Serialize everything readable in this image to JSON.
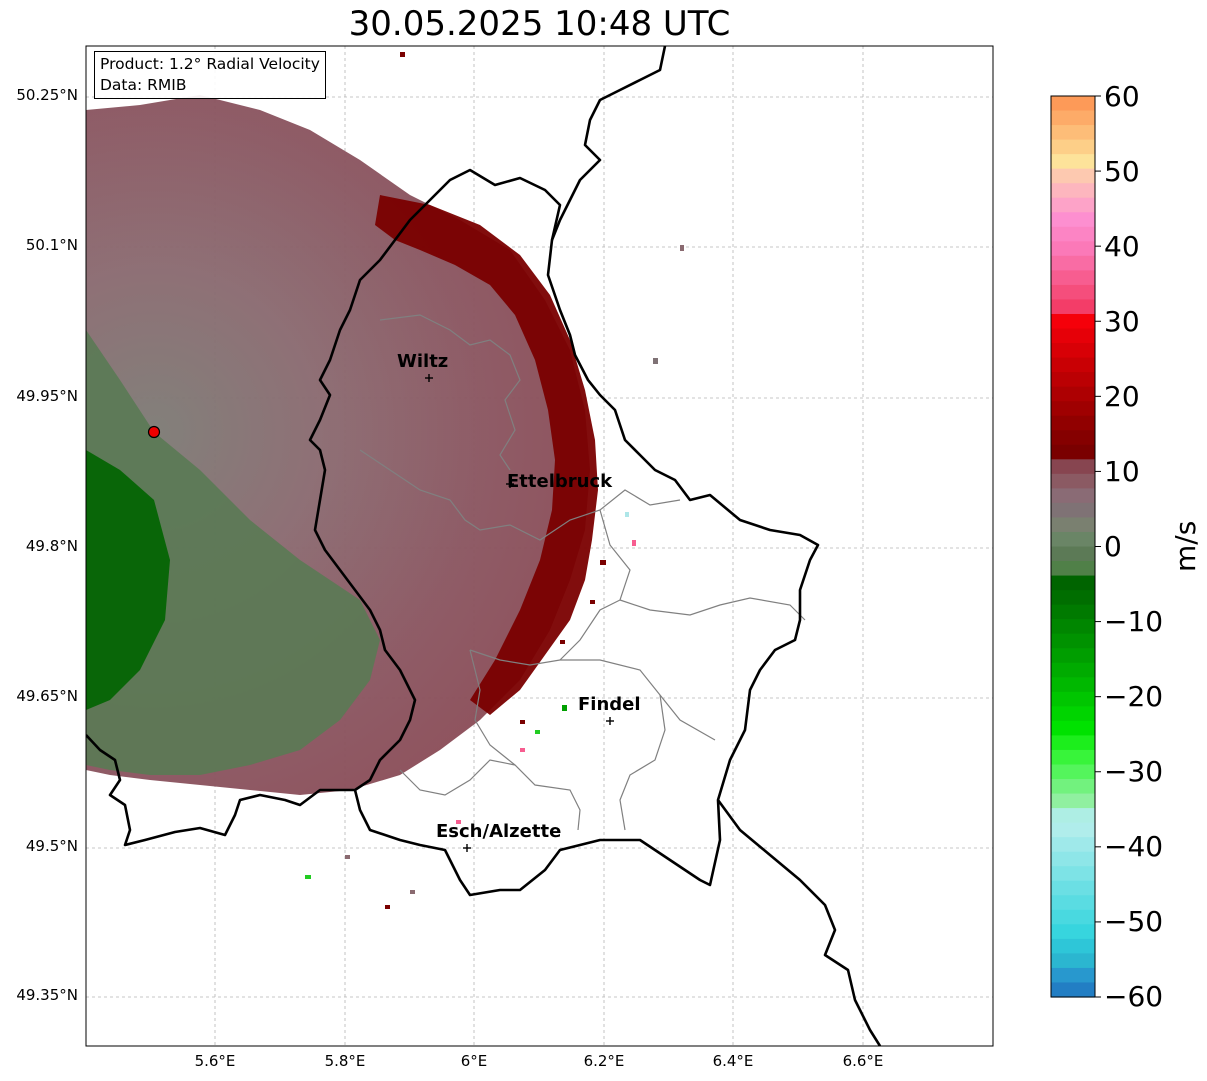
{
  "title": "30.05.2025 10:48 UTC",
  "info": {
    "product": "Product: 1.2° Radial Velocity",
    "data": "Data: RMIB"
  },
  "lat_labels": [
    "50.25°N",
    "50.1°N",
    "49.95°N",
    "49.8°N",
    "49.65°N",
    "49.5°N",
    "49.35°N"
  ],
  "lon_labels": [
    "5.6°E",
    "5.8°E",
    "6°E",
    "6.2°E",
    "6.4°E",
    "6.6°E"
  ],
  "cities": [
    {
      "name": "Wiltz"
    },
    {
      "name": "Ettelbruck"
    },
    {
      "name": "Findel"
    },
    {
      "name": "Esch/Alzette"
    }
  ],
  "radar_site": {
    "lon": 5.505,
    "lat": 49.914
  },
  "colorbar": {
    "unit": "m/s",
    "ticks": [
      "60",
      "50",
      "40",
      "30",
      "20",
      "10",
      "0",
      "−10",
      "−20",
      "−30",
      "−40",
      "−50",
      "−60"
    ],
    "vmin": -60,
    "vmax": 60,
    "colors_top_to_bottom": [
      "#fd9a58",
      "#fdab68",
      "#fdbd78",
      "#fdcf88",
      "#fde39a",
      "#fdc9b0",
      "#fdb6be",
      "#fda3c8",
      "#fd8fd0",
      "#fc84c4",
      "#fb79b8",
      "#f96ca4",
      "#f75d90",
      "#f54e7c",
      "#f33d68",
      "#f5000a",
      "#e60008",
      "#d80006",
      "#c90004",
      "#bb0003",
      "#ad0002",
      "#9f0001",
      "#910000",
      "#850000",
      "#7a0000",
      "#874550",
      "#8b5a63",
      "#8a6b75",
      "#7f7275",
      "#7a8070",
      "#6a8566",
      "#5c7a56",
      "#508048",
      "#006400",
      "#006e00",
      "#007a00",
      "#008600",
      "#009200",
      "#009e00",
      "#00ab00",
      "#00b800",
      "#00c600",
      "#00d400",
      "#00e200",
      "#1cee1c",
      "#38f43a",
      "#54f55c",
      "#72f27e",
      "#90f0a0",
      "#aeeee4",
      "#b0edeb",
      "#9fe9ea",
      "#8ee6e8",
      "#7de3e6",
      "#6bdfe4",
      "#5adce2",
      "#49d9e0",
      "#37d5de",
      "#2ec6d8",
      "#2bb6d0",
      "#2898ce",
      "#227ec4"
    ]
  }
}
